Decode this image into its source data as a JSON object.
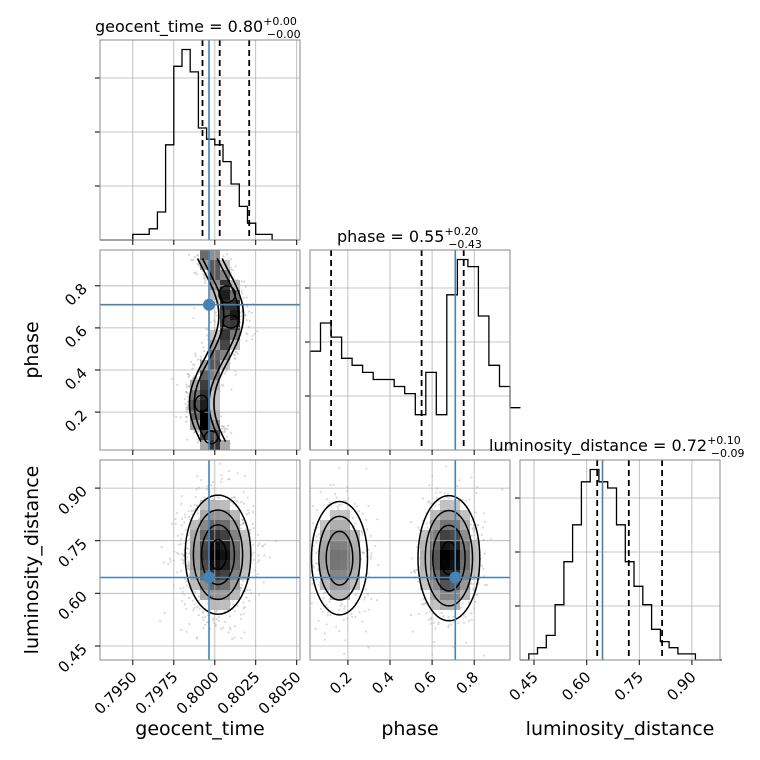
{
  "chart_data": {
    "type": "corner",
    "parameters": [
      "geocent_time",
      "phase",
      "luminosity_distance"
    ],
    "titles": {
      "geocent_time": {
        "label": "geocent_time",
        "median": "0.80",
        "plus": "+0.00",
        "minus": "−0.00"
      },
      "phase": {
        "label": "phase",
        "median": "0.55",
        "plus": "+0.20",
        "minus": "−0.43"
      },
      "luminosity_distance": {
        "label": "luminosity_distance",
        "median": "0.72",
        "plus": "+0.10",
        "minus": "−0.09"
      }
    },
    "title_sign": " = ",
    "axis_labels": {
      "geocent_time": "geocent_time",
      "phase": "phase",
      "luminosity_distance": "luminosity_distance"
    },
    "ranges": {
      "geocent_time": [
        0.793,
        0.8052
      ],
      "phase": [
        0.02,
        0.97
      ],
      "luminosity_distance": [
        0.41,
        0.98
      ]
    },
    "ticks": {
      "geocent_time": {
        "values": [
          0.795,
          0.7975,
          0.8,
          0.8025,
          0.805
        ],
        "labels": [
          "0.7950",
          "0.7975",
          "0.8000",
          "0.8025",
          "0.8050"
        ]
      },
      "phase_x": {
        "values": [
          0.2,
          0.4,
          0.6,
          0.8
        ],
        "labels": [
          "0.2",
          "0.4",
          "0.6",
          "0.8"
        ]
      },
      "phase_y": {
        "values": [
          0.2,
          0.4,
          0.6,
          0.8
        ],
        "labels": [
          "0.2",
          "0.4",
          "0.6",
          "0.8"
        ]
      },
      "luminosity_distance": {
        "values": [
          0.45,
          0.6,
          0.75,
          0.9
        ],
        "labels": [
          "0.45",
          "0.60",
          "0.75",
          "0.90"
        ]
      }
    },
    "truths": {
      "geocent_time": 0.79965,
      "phase": 0.71,
      "luminosity_distance": 0.645
    },
    "quantiles": {
      "geocent_time": [
        0.79925,
        0.8003,
        0.8021
      ],
      "phase": [
        0.12,
        0.55,
        0.75
      ],
      "luminosity_distance": [
        0.63,
        0.72,
        0.815
      ]
    },
    "hist1d": {
      "geocent_time": {
        "edges_start": 0.793,
        "bin_width": 0.0005,
        "counts": [
          0,
          0,
          0,
          0,
          1,
          1,
          2,
          5,
          17,
          31,
          34,
          30,
          20,
          18,
          17,
          14,
          10,
          6,
          3,
          1,
          1,
          0,
          0,
          0
        ]
      },
      "phase": {
        "edges_start": 0.02,
        "bin_width": 0.05,
        "counts": [
          14,
          18,
          16,
          13,
          12,
          11,
          10,
          10,
          9,
          8,
          5,
          11,
          5,
          22,
          27,
          26,
          19,
          12,
          9,
          6
        ]
      },
      "luminosity_distance": {
        "edges_start": 0.41,
        "bin_width": 0.025,
        "counts": [
          0,
          1,
          2,
          4,
          9,
          16,
          22,
          29,
          31,
          29,
          28,
          22,
          16,
          12,
          9,
          5,
          3,
          2,
          1,
          1,
          0,
          0,
          0
        ]
      }
    },
    "colors": {
      "truth": "#4682b4",
      "hist": "#000000",
      "quantile": "#000000",
      "points": "#aaaaaa"
    },
    "grid": true
  }
}
